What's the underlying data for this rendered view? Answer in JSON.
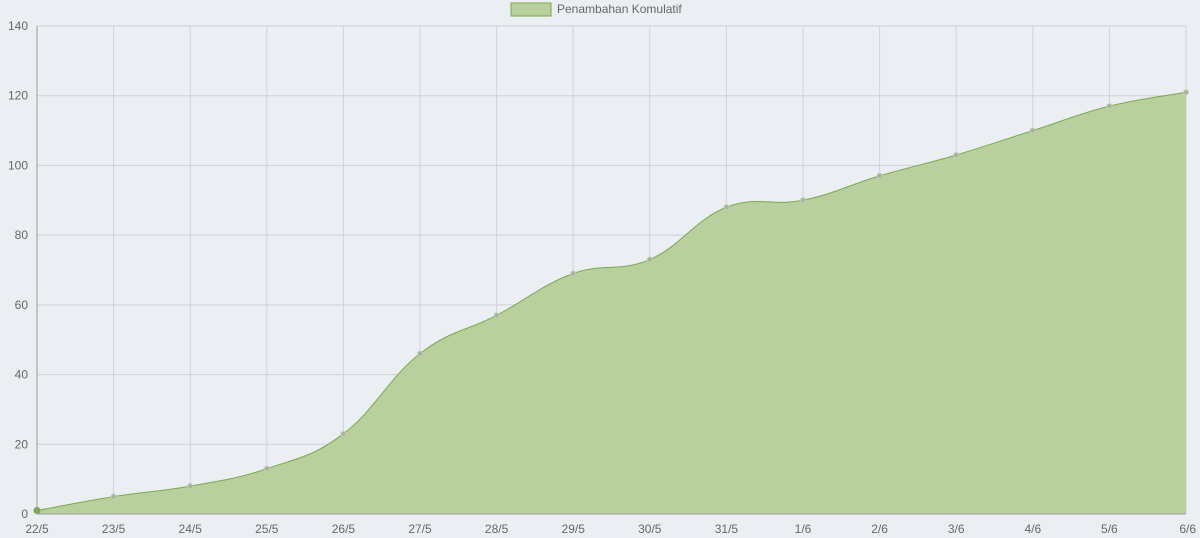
{
  "chart_data": {
    "type": "area",
    "title": "",
    "xlabel": "",
    "ylabel": "",
    "categories": [
      "22/5",
      "23/5",
      "24/5",
      "25/5",
      "26/5",
      "27/5",
      "28/5",
      "29/5",
      "30/5",
      "31/5",
      "1/6",
      "2/6",
      "3/6",
      "4/6",
      "5/6",
      "6/6"
    ],
    "series": [
      {
        "name": "Penambahan Komulatif",
        "values": [
          1,
          5,
          8,
          13,
          23,
          46,
          57,
          69,
          73,
          88,
          90,
          97,
          103,
          110,
          117,
          121
        ]
      }
    ],
    "ylim": [
      0,
      140
    ],
    "yticks": [
      0,
      20,
      40,
      60,
      80,
      100,
      120,
      140
    ],
    "grid": true,
    "legend": "top-center",
    "colors": {
      "fill": "#b9d09e",
      "stroke": "#7aa84f",
      "point": "#a6b496",
      "grid": "#cdd3da",
      "axis": "#999999",
      "text": "#666666"
    }
  }
}
